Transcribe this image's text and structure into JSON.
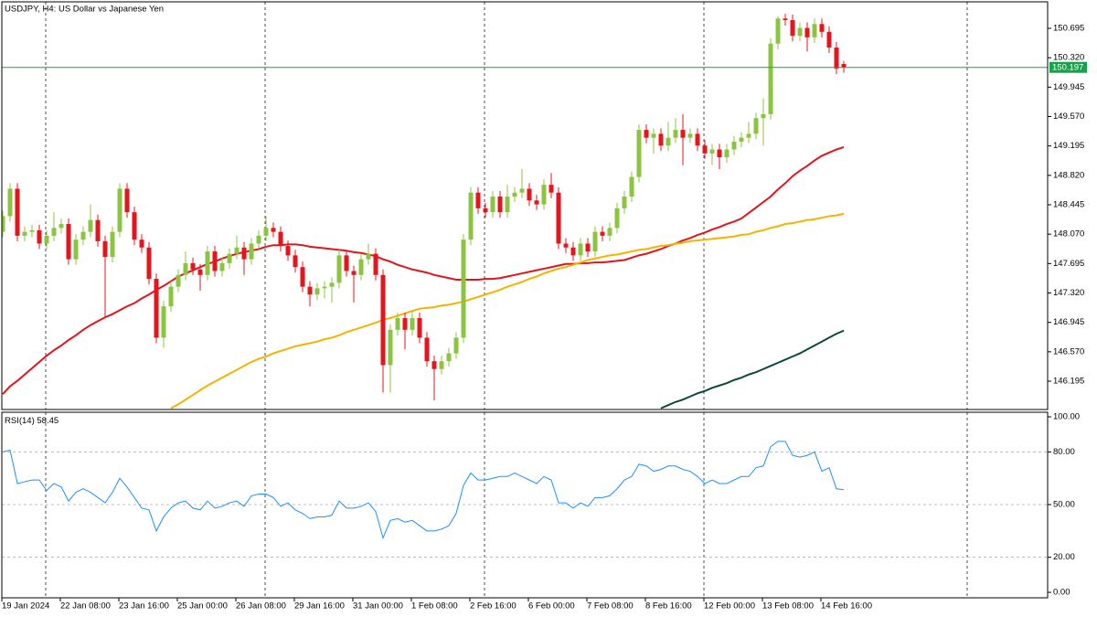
{
  "chart_data": [
    {
      "type": "candlestick",
      "title": "USDJPY, H4:  US Dollar vs Japanese Yen",
      "categories": [
        "19 Jan 2024",
        null,
        null,
        null,
        null,
        null,
        null,
        null,
        "22 Jan 08:00",
        null,
        null,
        null,
        null,
        null,
        null,
        null,
        "23 Jan 16:00",
        null,
        null,
        null,
        null,
        null,
        null,
        null,
        "25 Jan 00:00",
        null,
        null,
        null,
        null,
        null,
        null,
        null,
        "26 Jan 08:00",
        null,
        null,
        null,
        null,
        null,
        null,
        null,
        "29 Jan 16:00",
        null,
        null,
        null,
        null,
        null,
        null,
        null,
        "31 Jan 00:00",
        null,
        null,
        null,
        null,
        null,
        null,
        null,
        "1 Feb 08:00",
        null,
        null,
        null,
        null,
        null,
        null,
        null,
        "2 Feb 16:00",
        null,
        null,
        null,
        null,
        null,
        null,
        null,
        "6 Feb 00:00",
        null,
        null,
        null,
        null,
        null,
        null,
        null,
        "7 Feb 08:00",
        null,
        null,
        null,
        null,
        null,
        null,
        null,
        "8 Feb 16:00",
        null,
        null,
        null,
        null,
        null,
        null,
        null,
        "12 Feb 00:00",
        null,
        null,
        null,
        null,
        null,
        null,
        null,
        "13 Feb 08:00",
        null,
        null,
        null,
        null,
        null,
        null,
        null,
        "14 Feb 16:00",
        null,
        null,
        null
      ],
      "open": [
        148.1,
        148.3,
        148.65,
        148.05,
        148.1,
        148.12,
        147.95,
        148.05,
        148.15,
        148.2,
        147.75,
        148.0,
        148.1,
        148.25,
        147.98,
        147.78,
        148.1,
        148.65,
        148.35,
        148.0,
        147.9,
        147.5,
        146.75,
        147.15,
        147.4,
        147.55,
        147.7,
        147.62,
        147.55,
        147.85,
        147.6,
        147.7,
        147.82,
        147.9,
        147.75,
        147.95,
        148.05,
        148.15,
        148.1,
        147.92,
        147.8,
        147.65,
        147.4,
        147.3,
        147.38,
        147.4,
        147.45,
        147.8,
        147.6,
        147.55,
        147.75,
        147.82,
        147.55,
        146.4,
        146.85,
        147.0,
        146.85,
        147.0,
        146.75,
        146.45,
        146.35,
        146.45,
        146.55,
        146.75,
        148.0,
        148.6,
        148.4,
        148.35,
        148.55,
        148.35,
        148.55,
        148.6,
        148.65,
        148.5,
        148.45,
        148.7,
        148.6,
        147.95,
        147.9,
        147.8,
        147.95,
        147.85,
        148.1,
        148.05,
        148.15,
        148.4,
        148.55,
        148.8,
        149.4,
        149.3,
        149.35,
        149.2,
        149.3,
        149.4,
        149.3,
        149.35,
        149.2,
        149.1,
        149.15,
        149.05,
        149.15,
        149.25,
        149.3,
        149.35,
        149.55,
        149.6,
        150.5,
        150.82,
        150.8,
        150.6,
        150.7,
        150.58,
        150.75,
        150.65,
        150.45,
        150.24
      ],
      "high": [
        148.37,
        148.72,
        148.72,
        148.17,
        148.19,
        148.19,
        148.12,
        148.35,
        148.27,
        148.27,
        148.07,
        148.17,
        148.45,
        148.32,
        148.05,
        148.17,
        148.72,
        148.72,
        148.42,
        148.07,
        147.97,
        147.57,
        147.22,
        147.47,
        147.62,
        147.85,
        147.77,
        147.69,
        147.92,
        147.92,
        147.77,
        147.89,
        148.05,
        147.97,
        148.02,
        148.12,
        148.3,
        148.22,
        148.17,
        147.99,
        147.87,
        147.72,
        147.47,
        147.45,
        147.47,
        147.52,
        147.87,
        147.87,
        147.67,
        147.82,
        147.95,
        147.89,
        147.62,
        146.92,
        147.07,
        147.07,
        147.1,
        147.07,
        146.82,
        146.52,
        146.52,
        146.62,
        146.82,
        148.07,
        148.67,
        148.67,
        148.47,
        148.62,
        148.62,
        148.7,
        148.67,
        148.9,
        148.72,
        148.57,
        148.77,
        148.85,
        148.67,
        148.02,
        147.97,
        148.02,
        148.02,
        148.17,
        148.17,
        148.22,
        148.47,
        148.62,
        148.87,
        149.47,
        149.47,
        149.42,
        149.42,
        149.5,
        149.55,
        149.6,
        149.42,
        149.42,
        149.27,
        149.22,
        149.22,
        149.22,
        149.32,
        149.37,
        149.5,
        149.62,
        149.8,
        150.57,
        150.85,
        150.88,
        150.87,
        150.77,
        150.77,
        150.82,
        150.82,
        150.72,
        150.52,
        150.28
      ],
      "low": [
        148.03,
        148.23,
        147.98,
        147.98,
        148.03,
        147.88,
        147.88,
        147.98,
        148.08,
        147.68,
        147.68,
        147.93,
        148.03,
        147.91,
        147.0,
        147.71,
        148.03,
        148.28,
        147.93,
        147.83,
        147.43,
        146.68,
        146.62,
        147.08,
        147.33,
        147.48,
        147.55,
        147.35,
        147.48,
        147.53,
        147.53,
        147.63,
        147.75,
        147.55,
        147.68,
        147.88,
        147.98,
        148.03,
        147.85,
        147.73,
        147.58,
        147.33,
        147.15,
        147.23,
        147.25,
        147.2,
        147.38,
        147.53,
        147.2,
        147.48,
        147.68,
        147.48,
        146.05,
        146.05,
        146.78,
        146.6,
        146.78,
        146.68,
        146.38,
        145.95,
        146.28,
        146.38,
        146.48,
        146.68,
        147.93,
        148.33,
        148.28,
        148.28,
        148.28,
        148.28,
        148.48,
        148.53,
        148.43,
        148.38,
        148.38,
        148.53,
        147.88,
        147.83,
        147.73,
        147.73,
        147.78,
        147.78,
        147.98,
        147.98,
        148.08,
        148.33,
        148.48,
        148.73,
        149.23,
        149.1,
        149.13,
        149.13,
        149.23,
        148.95,
        149.23,
        149.13,
        149.03,
        148.95,
        148.9,
        148.98,
        149.08,
        149.18,
        149.23,
        149.28,
        149.2,
        149.53,
        150.43,
        150.73,
        150.53,
        150.53,
        150.4,
        150.51,
        150.58,
        150.38,
        150.11,
        150.13
      ],
      "close": [
        148.3,
        148.65,
        148.05,
        148.1,
        148.12,
        147.95,
        148.05,
        148.15,
        148.2,
        147.75,
        148.0,
        148.1,
        148.25,
        147.98,
        147.78,
        148.1,
        148.65,
        148.35,
        148.0,
        147.9,
        147.5,
        146.75,
        147.15,
        147.4,
        147.55,
        147.7,
        147.62,
        147.55,
        147.85,
        147.6,
        147.7,
        147.82,
        147.9,
        147.75,
        147.95,
        148.05,
        148.15,
        148.1,
        147.92,
        147.8,
        147.65,
        147.4,
        147.3,
        147.38,
        147.4,
        147.45,
        147.8,
        147.6,
        147.55,
        147.75,
        147.82,
        147.55,
        146.4,
        146.85,
        147.0,
        146.85,
        147.0,
        146.75,
        146.45,
        146.35,
        146.45,
        146.55,
        146.75,
        148.0,
        148.6,
        148.4,
        148.35,
        148.55,
        148.35,
        148.55,
        148.6,
        148.65,
        148.5,
        148.45,
        148.7,
        148.6,
        147.95,
        147.9,
        147.8,
        147.95,
        147.85,
        148.1,
        148.05,
        148.15,
        148.4,
        148.55,
        148.8,
        149.4,
        149.3,
        149.35,
        149.2,
        149.3,
        149.4,
        149.3,
        149.35,
        149.2,
        149.1,
        149.15,
        149.05,
        149.15,
        149.25,
        149.3,
        149.35,
        149.55,
        149.6,
        150.5,
        150.82,
        150.8,
        150.6,
        150.7,
        150.58,
        150.75,
        150.65,
        150.45,
        150.18,
        150.197
      ],
      "up_color": "#8bc540",
      "down_color": "#e8141c",
      "series": [
        {
          "color": "#e0141c",
          "values": [
            146.03,
            146.13,
            146.2,
            146.28,
            146.36,
            146.44,
            146.52,
            146.59,
            146.65,
            146.72,
            146.78,
            146.85,
            146.91,
            146.96,
            147.01,
            147.05,
            147.1,
            147.15,
            147.19,
            147.25,
            147.3,
            147.36,
            147.41,
            147.47,
            147.53,
            147.57,
            147.61,
            147.65,
            147.69,
            147.72,
            147.76,
            147.79,
            147.82,
            147.84,
            147.86,
            147.88,
            147.91,
            147.93,
            147.93,
            147.94,
            147.94,
            147.93,
            147.91,
            147.9,
            147.89,
            147.88,
            147.87,
            147.86,
            147.84,
            147.83,
            147.81,
            147.79,
            147.75,
            147.72,
            147.68,
            147.65,
            147.62,
            147.6,
            147.58,
            147.55,
            147.53,
            147.51,
            147.49,
            147.49,
            147.49,
            147.49,
            147.5,
            147.5,
            147.51,
            147.53,
            147.55,
            147.57,
            147.59,
            147.61,
            147.63,
            147.65,
            147.67,
            147.69,
            147.69,
            147.7,
            147.7,
            147.71,
            147.71,
            147.72,
            147.73,
            147.74,
            147.77,
            147.8,
            147.82,
            147.85,
            147.88,
            147.92,
            147.95,
            147.99,
            148.02,
            148.06,
            148.09,
            148.13,
            148.16,
            148.2,
            148.23,
            148.27,
            148.34,
            148.41,
            148.48,
            148.55,
            148.64,
            148.72,
            148.81,
            148.88,
            148.94,
            149.01,
            149.07,
            149.11,
            149.15,
            149.18
          ]
        },
        {
          "color": "#f5b300",
          "values": [
            null,
            null,
            null,
            null,
            null,
            null,
            null,
            null,
            null,
            null,
            null,
            null,
            null,
            null,
            null,
            null,
            null,
            null,
            null,
            null,
            null,
            null,
            null,
            145.85,
            145.9,
            145.96,
            146.02,
            146.08,
            146.14,
            146.19,
            146.24,
            146.29,
            146.34,
            146.39,
            146.44,
            146.48,
            146.51,
            146.55,
            146.58,
            146.61,
            146.64,
            146.66,
            146.68,
            146.7,
            146.73,
            146.75,
            146.78,
            146.82,
            146.85,
            146.88,
            146.91,
            146.94,
            146.98,
            147.0,
            147.03,
            147.06,
            147.09,
            147.12,
            147.13,
            147.14,
            147.16,
            147.17,
            147.19,
            147.21,
            147.24,
            147.27,
            147.3,
            147.33,
            147.36,
            147.4,
            147.43,
            147.46,
            147.5,
            147.53,
            147.57,
            147.6,
            147.63,
            147.65,
            147.68,
            147.71,
            147.74,
            147.76,
            147.78,
            147.8,
            147.81,
            147.83,
            147.85,
            147.87,
            147.88,
            147.9,
            147.92,
            147.93,
            147.95,
            147.96,
            147.98,
            147.99,
            148.0,
            148.01,
            148.02,
            148.03,
            148.04,
            148.06,
            148.07,
            148.1,
            148.12,
            148.15,
            148.17,
            148.2,
            148.21,
            148.23,
            148.25,
            148.26,
            148.28,
            148.3,
            148.31,
            148.33
          ]
        },
        {
          "color": "#0d4a3c",
          "values": [
            null,
            null,
            null,
            null,
            null,
            null,
            null,
            null,
            null,
            null,
            null,
            null,
            null,
            null,
            null,
            null,
            null,
            null,
            null,
            null,
            null,
            null,
            null,
            null,
            null,
            null,
            null,
            null,
            null,
            null,
            null,
            null,
            null,
            null,
            null,
            null,
            null,
            null,
            null,
            null,
            null,
            null,
            null,
            null,
            null,
            null,
            null,
            null,
            null,
            null,
            null,
            null,
            null,
            null,
            null,
            null,
            null,
            null,
            null,
            null,
            null,
            null,
            null,
            null,
            null,
            null,
            null,
            null,
            null,
            null,
            null,
            null,
            null,
            null,
            null,
            null,
            null,
            null,
            null,
            null,
            null,
            null,
            null,
            null,
            null,
            null,
            null,
            null,
            null,
            null,
            145.85,
            145.89,
            145.93,
            145.96,
            146.0,
            146.04,
            146.07,
            146.11,
            146.14,
            146.17,
            146.21,
            146.24,
            146.28,
            146.31,
            146.35,
            146.39,
            146.43,
            146.47,
            146.51,
            146.55,
            146.6,
            146.65,
            146.7,
            146.75,
            146.8,
            146.84
          ]
        }
      ],
      "last_price": 150.197,
      "last_price_color": "#16a34a",
      "ylim": [
        145.834,
        151.033
      ],
      "yticks": [
        150.695,
        {
          "value": 150.32,
          "label": "150.320"
        },
        149.945,
        {
          "value": 149.57,
          "label": "149.570"
        },
        149.195,
        {
          "value": 148.82,
          "label": "148.820"
        },
        148.445,
        {
          "value": 148.07,
          "label": "148.070"
        },
        147.695,
        {
          "value": 147.32,
          "label": "147.320"
        },
        146.945,
        {
          "value": 146.57,
          "label": "146.570"
        },
        146.195
      ]
    },
    {
      "type": "line",
      "title": "RSI(14)",
      "color": "#1e90ff",
      "values": [
        80,
        81,
        62,
        63,
        64,
        64,
        58,
        62,
        60,
        52,
        57,
        59,
        57,
        54,
        51,
        57,
        65,
        60,
        54,
        48,
        47,
        35,
        43,
        48,
        51,
        52,
        48,
        47,
        52,
        48,
        49,
        51,
        52,
        49,
        55,
        56,
        56,
        54,
        49,
        51,
        47,
        45,
        42,
        43,
        43,
        44,
        52,
        48,
        48,
        49,
        51,
        46,
        31,
        41,
        42,
        40,
        41,
        38,
        35,
        35,
        36,
        38,
        45,
        61,
        68,
        64,
        64,
        65,
        66,
        66,
        68,
        66,
        64,
        62,
        66,
        64,
        51,
        51,
        48,
        51,
        49,
        54,
        54,
        55,
        59,
        64,
        66,
        73,
        72,
        69,
        70,
        72,
        72,
        70,
        69,
        66,
        62,
        64,
        62,
        62,
        64,
        66,
        66,
        71,
        72,
        83,
        86,
        86,
        78,
        77,
        78,
        80,
        69,
        71,
        59,
        58.45
      ],
      "ylim": [
        -3.1,
        102.6
      ],
      "yticks": [
        {
          "value": 100,
          "label": "100.00"
        },
        {
          "value": 80,
          "label": "80.00"
        },
        {
          "value": 50,
          "label": "50.00"
        },
        {
          "value": 20,
          "label": "20.00"
        },
        {
          "value": 0,
          "label": "0.00"
        }
      ],
      "grid": true
    }
  ]
}
